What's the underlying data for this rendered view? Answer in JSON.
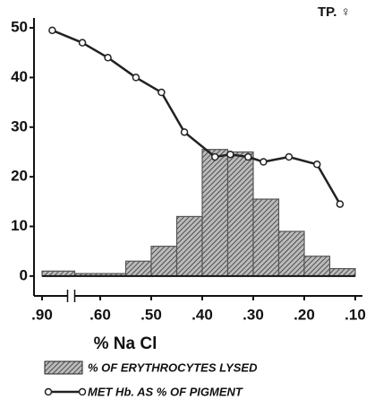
{
  "chart_data": {
    "type": "combo",
    "annotation": "TP. ♀",
    "x_label": "% Na Cl",
    "xlim": [
      0.9,
      0.1
    ],
    "x_break": [
      0.85,
      0.65
    ],
    "xticks": [
      {
        "value": 0.9,
        "label": ".90"
      },
      {
        "value": 0.6,
        "label": ".60"
      },
      {
        "value": 0.5,
        "label": ".50"
      },
      {
        "value": 0.4,
        "label": ".40"
      },
      {
        "value": 0.3,
        "label": ".30"
      },
      {
        "value": 0.2,
        "label": ".20"
      },
      {
        "value": 0.1,
        "label": ".10"
      }
    ],
    "ylim": [
      -4,
      52
    ],
    "yticks": [
      0,
      10,
      20,
      30,
      40,
      50
    ],
    "series": [
      {
        "name": "% OF ERYTHROCYTES LYSED",
        "type": "histogram",
        "color": "#555",
        "bins": [
          0.9,
          0.65,
          0.55,
          0.5,
          0.45,
          0.4,
          0.35,
          0.3,
          0.25,
          0.2,
          0.15,
          0.1
        ],
        "values": [
          1,
          0.5,
          3,
          6,
          12,
          25.5,
          25,
          15.5,
          9,
          4,
          1.5
        ]
      },
      {
        "name": "MET Hb. AS % OF PIGMENT",
        "type": "line",
        "color": "#222",
        "x": [
          0.88,
          0.635,
          0.585,
          0.53,
          0.48,
          0.435,
          0.375,
          0.345,
          0.31,
          0.28,
          0.23,
          0.175,
          0.13
        ],
        "values": [
          49.5,
          47,
          44,
          40,
          37,
          29,
          24,
          24.5,
          24,
          23,
          24,
          22.5,
          14.5
        ]
      }
    ]
  }
}
